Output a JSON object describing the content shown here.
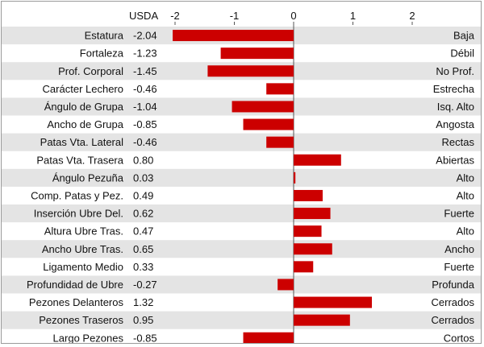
{
  "chart_data": {
    "type": "bar",
    "orientation": "horizontal",
    "value_header": "USDA",
    "x_ticks": [
      -2,
      -1,
      0,
      1,
      2
    ],
    "xlim": [
      -2.2,
      2.2
    ],
    "grid": false,
    "bar_color": "#cc0000",
    "band_color": "#e4e4e4",
    "categories": [
      "Estatura",
      "Fortaleza",
      "Prof. Corporal",
      "Carácter Lechero",
      "Ángulo de Grupa",
      "Ancho de Grupa",
      "Patas Vta. Lateral",
      "Patas Vta. Trasera",
      "Ángulo Pezuña",
      "Comp. Patas y Pez.",
      "Inserción Ubre Del.",
      "Altura Ubre Tras.",
      "Ancho Ubre Tras.",
      "Ligamento Medio",
      "Profundidad de Ubre",
      "Pezones Delanteros",
      "Pezones Traseros",
      "Largo Pezones"
    ],
    "values": [
      -2.04,
      -1.23,
      -1.45,
      -0.46,
      -1.04,
      -0.85,
      -0.46,
      0.8,
      0.03,
      0.49,
      0.62,
      0.47,
      0.65,
      0.33,
      -0.27,
      1.32,
      0.95,
      -0.85
    ],
    "value_labels": [
      "-2.04",
      "-1.23",
      "-1.45",
      "-0.46",
      "-1.04",
      "-0.85",
      "-0.46",
      "0.80",
      "0.03",
      "0.49",
      "0.62",
      "0.47",
      "0.65",
      "0.33",
      "-0.27",
      "1.32",
      "0.95",
      "-0.85"
    ],
    "descriptors": [
      "Baja",
      "Débil",
      "No Prof.",
      "Estrecha",
      "Isq. Alto",
      "Angosta",
      "Rectas",
      "Abiertas",
      "Alto",
      "Alto",
      "Fuerte",
      "Alto",
      "Ancho",
      "Fuerte",
      "Profunda",
      "Cerrados",
      "Cerrados",
      "Cortos"
    ]
  }
}
